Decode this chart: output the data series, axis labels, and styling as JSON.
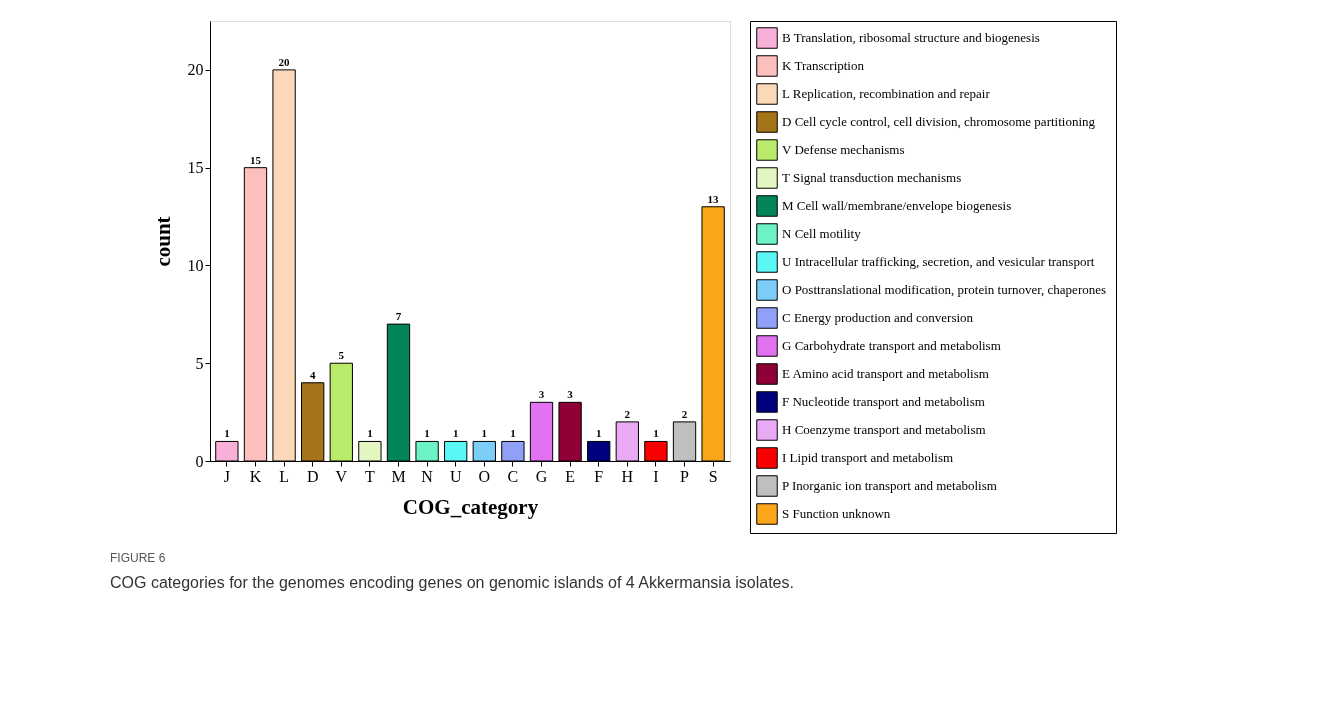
{
  "chart_data": {
    "type": "bar",
    "xlabel": "COG_category",
    "ylabel": "count",
    "categories": [
      "J",
      "K",
      "L",
      "D",
      "V",
      "T",
      "M",
      "N",
      "U",
      "O",
      "C",
      "G",
      "E",
      "F",
      "H",
      "I",
      "P",
      "S"
    ],
    "series": [
      {
        "name": "B  Translation, ribosomal structure and biogenesis",
        "color": "#f9b0d8",
        "values": [
          1,
          null,
          null,
          null,
          null,
          null,
          null,
          null,
          null,
          null,
          null,
          null,
          null,
          null,
          null,
          null,
          null,
          null
        ]
      },
      {
        "name": "K  Transcription",
        "color": "#fbbfbe",
        "values": [
          null,
          15,
          null,
          null,
          null,
          null,
          null,
          null,
          null,
          null,
          null,
          null,
          null,
          null,
          null,
          null,
          null,
          null
        ]
      },
      {
        "name": "L  Replication, recombination and repair",
        "color": "#fbd8b8",
        "values": [
          null,
          null,
          20,
          null,
          null,
          null,
          null,
          null,
          null,
          null,
          null,
          null,
          null,
          null,
          null,
          null,
          null,
          null
        ]
      },
      {
        "name": "D  Cell cycle control, cell division, chromosome partitioning",
        "color": "#a57318",
        "values": [
          null,
          null,
          null,
          4,
          null,
          null,
          null,
          null,
          null,
          null,
          null,
          null,
          null,
          null,
          null,
          null,
          null,
          null
        ]
      },
      {
        "name": "V  Defense mechanisms",
        "color": "#b9ea6a",
        "values": [
          null,
          null,
          null,
          null,
          5,
          null,
          null,
          null,
          null,
          null,
          null,
          null,
          null,
          null,
          null,
          null,
          null,
          null
        ]
      },
      {
        "name": "T  Signal transduction mechanisms",
        "color": "#e3f5c0",
        "values": [
          null,
          null,
          null,
          null,
          null,
          1,
          null,
          null,
          null,
          null,
          null,
          null,
          null,
          null,
          null,
          null,
          null,
          null
        ]
      },
      {
        "name": "M  Cell wall/membrane/envelope biogenesis",
        "color": "#04845a",
        "values": [
          null,
          null,
          null,
          null,
          null,
          null,
          7,
          null,
          null,
          null,
          null,
          null,
          null,
          null,
          null,
          null,
          null,
          null
        ]
      },
      {
        "name": "N  Cell motility",
        "color": "#6df2c5",
        "values": [
          null,
          null,
          null,
          null,
          null,
          null,
          null,
          1,
          null,
          null,
          null,
          null,
          null,
          null,
          null,
          null,
          null,
          null
        ]
      },
      {
        "name": "U  Intracellular trafficking, secretion, and vesicular transport",
        "color": "#5bf6f6",
        "values": [
          null,
          null,
          null,
          null,
          null,
          null,
          null,
          null,
          1,
          null,
          null,
          null,
          null,
          null,
          null,
          null,
          null,
          null
        ]
      },
      {
        "name": "O  Posttranslational modification, protein turnover, chaperones",
        "color": "#7dcdf9",
        "values": [
          null,
          null,
          null,
          null,
          null,
          null,
          null,
          null,
          null,
          1,
          null,
          null,
          null,
          null,
          null,
          null,
          null,
          null
        ]
      },
      {
        "name": "C  Energy production and conversion",
        "color": "#8fa0f6",
        "values": [
          null,
          null,
          null,
          null,
          null,
          null,
          null,
          null,
          null,
          null,
          1,
          null,
          null,
          null,
          null,
          null,
          null,
          null
        ]
      },
      {
        "name": "G  Carbohydrate transport and metabolism",
        "color": "#e173f0",
        "values": [
          null,
          null,
          null,
          null,
          null,
          null,
          null,
          null,
          null,
          null,
          null,
          3,
          null,
          null,
          null,
          null,
          null,
          null
        ]
      },
      {
        "name": "E  Amino acid transport and metabolism",
        "color": "#8f0037",
        "values": [
          null,
          null,
          null,
          null,
          null,
          null,
          null,
          null,
          null,
          null,
          null,
          null,
          3,
          null,
          null,
          null,
          null,
          null
        ]
      },
      {
        "name": "F  Nucleotide transport and metabolism",
        "color": "#00007f",
        "values": [
          null,
          null,
          null,
          null,
          null,
          null,
          null,
          null,
          null,
          null,
          null,
          null,
          null,
          1,
          null,
          null,
          null,
          null
        ]
      },
      {
        "name": "H  Coenzyme transport and metabolism",
        "color": "#eaa9f4",
        "values": [
          null,
          null,
          null,
          null,
          null,
          null,
          null,
          null,
          null,
          null,
          null,
          null,
          null,
          null,
          2,
          null,
          null,
          null
        ]
      },
      {
        "name": "I  Lipid transport and metabolism",
        "color": "#fb0000",
        "values": [
          null,
          null,
          null,
          null,
          null,
          null,
          null,
          null,
          null,
          null,
          null,
          null,
          null,
          null,
          null,
          1,
          null,
          null
        ]
      },
      {
        "name": "P  Inorganic ion transport and metabolism",
        "color": "#bfbfbf",
        "values": [
          null,
          null,
          null,
          null,
          null,
          null,
          null,
          null,
          null,
          null,
          null,
          null,
          null,
          null,
          null,
          null,
          2,
          null
        ]
      },
      {
        "name": "S  Function unknown",
        "color": "#fba61a",
        "values": [
          null,
          null,
          null,
          null,
          null,
          null,
          null,
          null,
          null,
          null,
          null,
          null,
          null,
          null,
          null,
          null,
          null,
          13
        ]
      }
    ],
    "ylim": [
      0,
      22.5
    ],
    "yticks": [
      0,
      5,
      10,
      15,
      20
    ],
    "grid": false,
    "legend": "right",
    "data_labels": true,
    "annotations": [
      "FIGURE 6",
      "COG categories for the genomes encoding genes on genomic islands of 4 Akkermansia isolates."
    ]
  }
}
